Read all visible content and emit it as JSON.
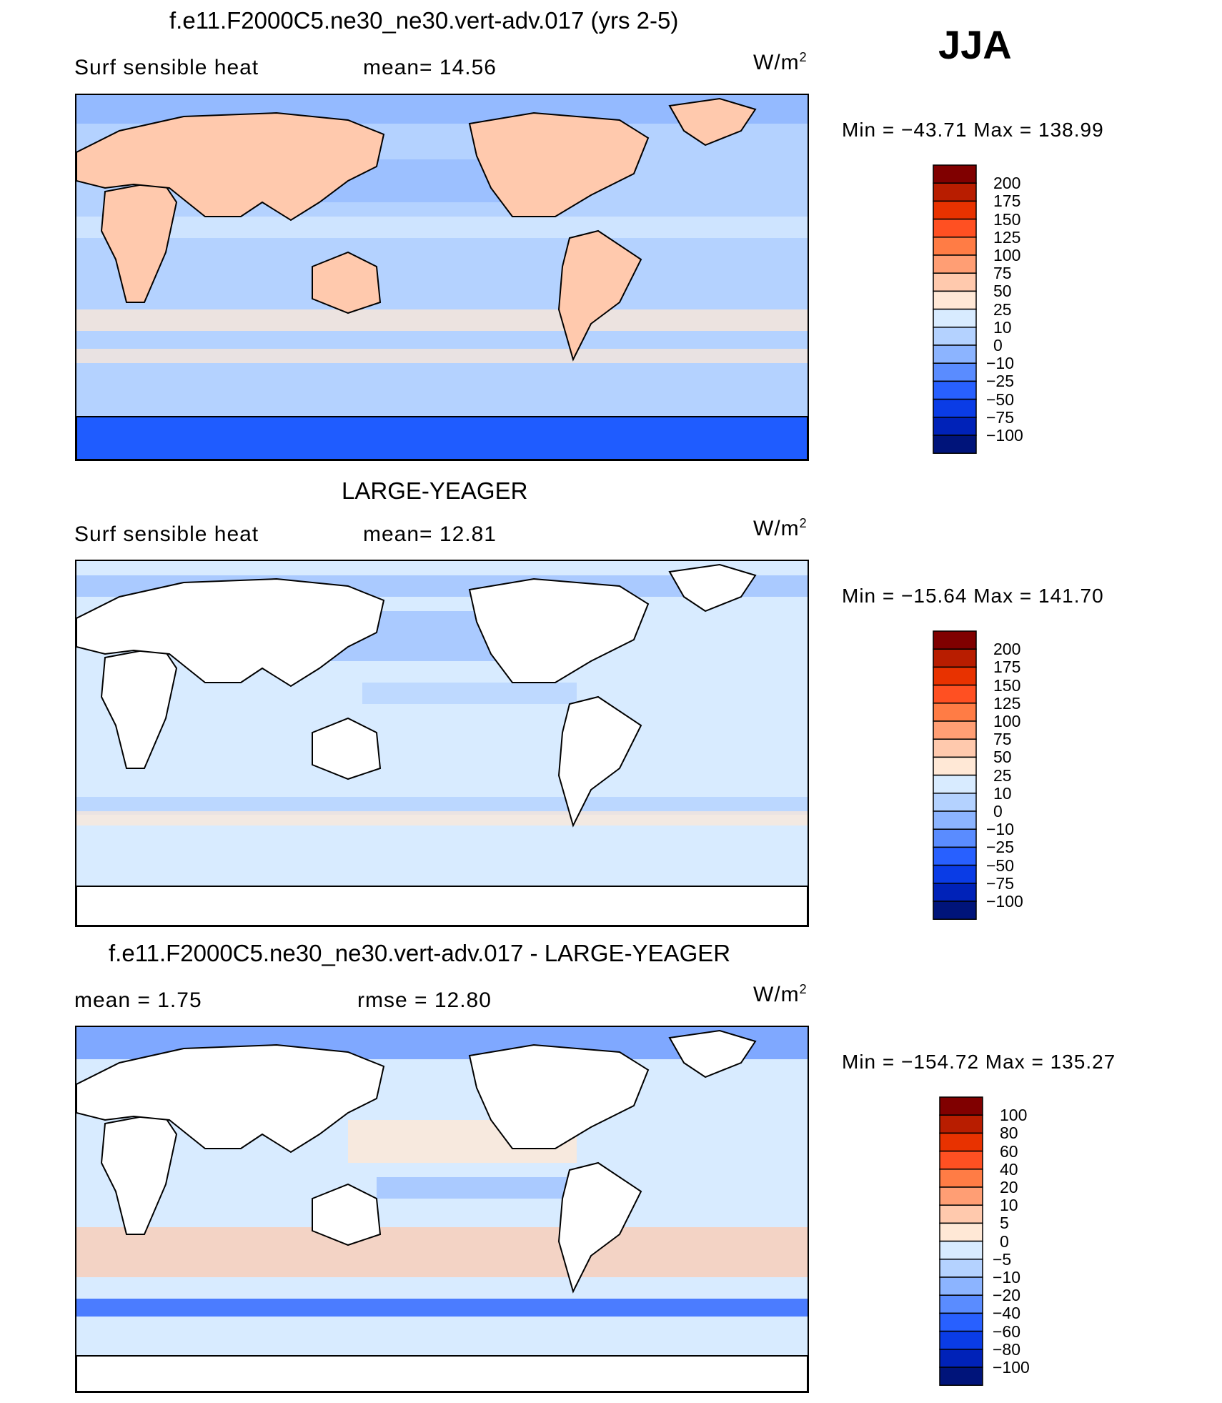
{
  "season": "JJA",
  "panels": [
    {
      "title": "f.e11.F2000C5.ne30_ne30.vert-adv.017 (yrs 2-5)",
      "left_text": "Surf  sensible  heat",
      "mid_text": "mean=   14.56",
      "units": "W/m",
      "units_sup": "2",
      "minmax": "Min  =  −43.71  Max  =  138.99",
      "levels": [
        "200",
        "175",
        "150",
        "125",
        "100",
        "75",
        "50",
        "25",
        "10",
        "0",
        "−10",
        "−25",
        "−50",
        "−75",
        "−100"
      ],
      "colors": [
        "#800000",
        "#b81d00",
        "#e83200",
        "#ff5022",
        "#ff7c45",
        "#ff9e74",
        "#ffc9ad",
        "#ffe8d6",
        "#d8ebff",
        "#b4d2ff",
        "#8cb4ff",
        "#5a8cff",
        "#2860ff",
        "#0a3ce6",
        "#0022b8",
        "#00147a"
      ],
      "ocean": "#b4d2ff",
      "land": "#ffc9ad",
      "ice": "#1f5cff"
    },
    {
      "title": "LARGE-YEAGER",
      "left_text": "Surf  sensible  heat",
      "mid_text": "mean=   12.81",
      "units": "W/m",
      "units_sup": "2",
      "minmax": "Min  =  −15.64  Max  =  141.70",
      "levels": [
        "200",
        "175",
        "150",
        "125",
        "100",
        "75",
        "50",
        "25",
        "10",
        "0",
        "−10",
        "−25",
        "−50",
        "−75",
        "−100"
      ],
      "colors": [
        "#800000",
        "#b81d00",
        "#e83200",
        "#ff5022",
        "#ff7c45",
        "#ff9e74",
        "#ffc9ad",
        "#ffe8d6",
        "#d8ebff",
        "#b4d2ff",
        "#8cb4ff",
        "#5a8cff",
        "#2860ff",
        "#0a3ce6",
        "#0022b8",
        "#00147a"
      ],
      "ocean": "#d8ebff",
      "land": "#ffffff",
      "ice": "#ffffff"
    },
    {
      "title": "f.e11.F2000C5.ne30_ne30.vert-adv.017 - LARGE-YEAGER",
      "left_text": "mean  =     1.75",
      "mid_text": "rmse  =    12.80",
      "units": "W/m",
      "units_sup": "2",
      "minmax": "Min  =  −154.72  Max  =  135.27",
      "levels": [
        "100",
        "80",
        "60",
        "40",
        "20",
        "10",
        "5",
        "0",
        "−5",
        "−10",
        "−20",
        "−40",
        "−60",
        "−80",
        "−100"
      ],
      "colors": [
        "#800000",
        "#b81d00",
        "#e83200",
        "#ff5022",
        "#ff7c45",
        "#ff9e74",
        "#ffc9ad",
        "#ffe8d6",
        "#d8ebff",
        "#b4d2ff",
        "#8cb4ff",
        "#5a8cff",
        "#2860ff",
        "#0a3ce6",
        "#0022b8",
        "#00147a"
      ],
      "ocean": "#d8ebff",
      "land": "#ffffff",
      "ice": "#ffffff"
    }
  ],
  "chart_data": [
    {
      "type": "heatmap",
      "title": "f.e11.F2000C5.ne30_ne30.vert-adv.017 (yrs 2-5)",
      "variable": "Surf  sensible  heat",
      "mean": 14.56,
      "units": "W/m2",
      "min": -43.71,
      "max": 138.99,
      "levels": [
        -100,
        -75,
        -50,
        -25,
        -10,
        0,
        10,
        25,
        50,
        75,
        100,
        125,
        150,
        175,
        200
      ]
    },
    {
      "type": "heatmap",
      "title": "LARGE-YEAGER",
      "variable": "Surf  sensible  heat",
      "mean": 12.81,
      "units": "W/m2",
      "min": -15.64,
      "max": 141.7,
      "levels": [
        -100,
        -75,
        -50,
        -25,
        -10,
        0,
        10,
        25,
        50,
        75,
        100,
        125,
        150,
        175,
        200
      ]
    },
    {
      "type": "heatmap",
      "title": "f.e11.F2000C5.ne30_ne30.vert-adv.017 - LARGE-YEAGER",
      "mean": 1.75,
      "rmse": 12.8,
      "units": "W/m2",
      "min": -154.72,
      "max": 135.27,
      "levels": [
        -100,
        -80,
        -60,
        -40,
        -20,
        -10,
        -5,
        0,
        5,
        10,
        20,
        40,
        60,
        80,
        100
      ]
    }
  ]
}
